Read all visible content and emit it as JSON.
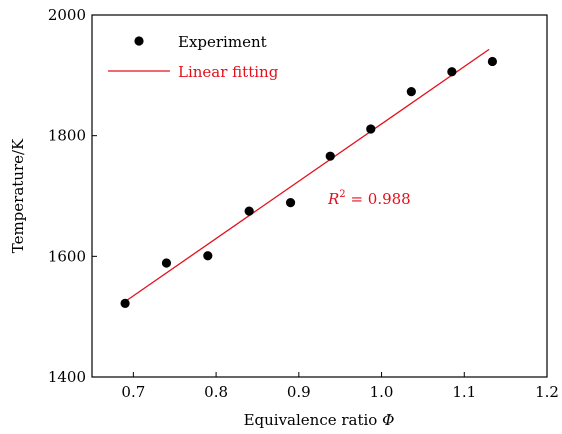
{
  "chart_data": {
    "type": "scatter",
    "xlabel": "Equivalence ratio",
    "xlabel_symbol": "Φ",
    "ylabel": "Temperature/K",
    "xlim": [
      0.65,
      1.2
    ],
    "ylim": [
      1400,
      2000
    ],
    "xticks": [
      "0.7",
      "0.8",
      "0.9",
      "1.0",
      "1.1",
      "1.2"
    ],
    "xtick_values": [
      0.7,
      0.8,
      0.9,
      1.0,
      1.1,
      1.2
    ],
    "yticks": [
      "1400",
      "1600",
      "1800",
      "2000"
    ],
    "ytick_values": [
      1400,
      1600,
      1800,
      2000
    ],
    "grid": false,
    "legend_position": "top-left",
    "series": [
      {
        "name": "Experiment",
        "kind": "scatter",
        "color": "#000000",
        "x": [
          0.69,
          0.74,
          0.79,
          0.84,
          0.89,
          0.938,
          0.987,
          1.036,
          1.085,
          1.134
        ],
        "y": [
          1522,
          1589,
          1601,
          1675,
          1689,
          1766,
          1811,
          1873,
          1906,
          1923
        ]
      },
      {
        "name": "Linear fitting",
        "kind": "line",
        "color": "#e3101c",
        "x": [
          0.69,
          1.13
        ],
        "y": [
          1525,
          1943
        ]
      }
    ],
    "annotation": {
      "prefix": "R",
      "sup": "2",
      "text": " = 0.988",
      "color": "#e3101c"
    }
  }
}
